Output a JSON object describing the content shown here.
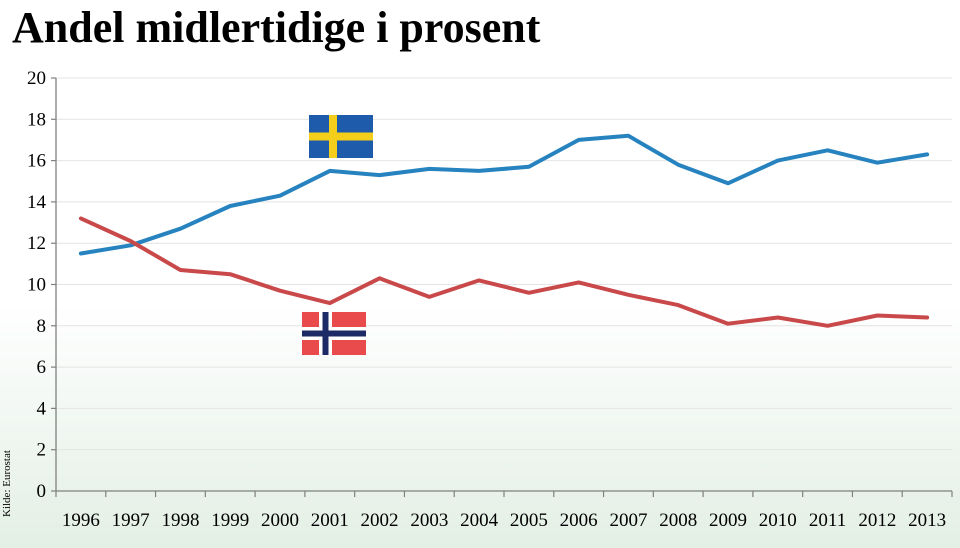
{
  "chart_data": {
    "type": "line",
    "title": "Andel midlertidige i prosent",
    "source": "Kilde: Eurostat",
    "x": [
      "1996",
      "1997",
      "1998",
      "1999",
      "2000",
      "2001",
      "2002",
      "2003",
      "2004",
      "2005",
      "2006",
      "2007",
      "2008",
      "2009",
      "2010",
      "2011",
      "2012",
      "2013"
    ],
    "ylim": [
      0,
      20
    ],
    "yticks": [
      0,
      2,
      4,
      6,
      8,
      10,
      12,
      14,
      16,
      18,
      20
    ],
    "grid": true,
    "legend": "flags",
    "series": [
      {
        "flag": "sweden-flag",
        "color": "#2683bf",
        "values": [
          11.5,
          11.9,
          12.7,
          13.8,
          14.3,
          15.5,
          15.3,
          15.6,
          15.5,
          15.7,
          17.0,
          17.2,
          15.8,
          14.9,
          16.0,
          16.5,
          15.9,
          16.3
        ]
      },
      {
        "flag": "norway-flag",
        "color": "#c9494a",
        "values": [
          13.2,
          12.1,
          10.7,
          10.5,
          9.7,
          9.1,
          10.3,
          9.4,
          10.2,
          9.6,
          10.1,
          9.5,
          9.0,
          8.1,
          8.4,
          8.0,
          8.5,
          8.4
        ]
      }
    ],
    "flag_colors": {
      "sweden": {
        "field": "#1f5bab",
        "cross": "#f5cd1b"
      },
      "norway": {
        "field": "#e94a4c",
        "cross_outer": "#ffffff",
        "cross_inner": "#1d2a66"
      }
    }
  }
}
